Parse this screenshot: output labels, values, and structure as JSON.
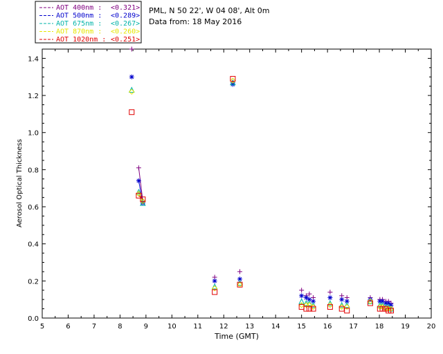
{
  "header": {
    "station": "PML, N 50 22', W 04 08', Alt 0m",
    "date_line": "Data from: 18 May 2016"
  },
  "chart_data": {
    "type": "scatter",
    "title": "",
    "xlabel": "Time (GMT)",
    "ylabel": "Aerosol Optical Thickness",
    "xlim": [
      5,
      20
    ],
    "ylim": [
      0,
      1.45
    ],
    "xticks": [
      "5",
      "6",
      "7",
      "8",
      "9",
      "10",
      "11",
      "12",
      "13",
      "14",
      "15",
      "16",
      "17",
      "18",
      "19",
      "20"
    ],
    "yticks": [
      "0.0",
      "0.2",
      "0.4",
      "0.6",
      "0.8",
      "1.0",
      "1.2",
      "1.4"
    ],
    "legend_position": "top-left",
    "series": [
      {
        "name": "AOT 400nm",
        "legend_label": "AOT  400nm : ",
        "mean_label": "<0.321>",
        "color": "#800080",
        "marker": "plus",
        "connect_first": 3,
        "x": [
          8.45,
          8.72,
          8.88,
          11.65,
          12.35,
          12.62,
          15.0,
          15.18,
          15.3,
          15.45,
          16.1,
          16.55,
          16.75,
          17.65,
          18.02,
          18.12,
          18.25,
          18.35,
          18.45
        ],
        "y": [
          1.46,
          0.81,
          0.63,
          0.22,
          1.27,
          0.25,
          0.15,
          0.12,
          0.13,
          0.11,
          0.14,
          0.12,
          0.11,
          0.11,
          0.1,
          0.1,
          0.09,
          0.09,
          0.08
        ]
      },
      {
        "name": "AOT 500nm",
        "legend_label": "AOT  500nm : ",
        "mean_label": "<0.289>",
        "color": "#0000cc",
        "marker": "asterisk",
        "connect_first": 3,
        "x": [
          8.45,
          8.72,
          8.88,
          11.65,
          12.35,
          12.62,
          15.0,
          15.18,
          15.3,
          15.45,
          16.1,
          16.55,
          16.75,
          17.65,
          18.02,
          18.12,
          18.25,
          18.35,
          18.45
        ],
        "y": [
          1.3,
          0.74,
          0.62,
          0.2,
          1.26,
          0.21,
          0.12,
          0.11,
          0.1,
          0.09,
          0.11,
          0.1,
          0.09,
          0.1,
          0.09,
          0.09,
          0.08,
          0.08,
          0.07
        ]
      },
      {
        "name": "AOT 675nm",
        "legend_label": "AOT  675nm : ",
        "mean_label": "<0.267>",
        "color": "#00b3a8",
        "marker": "triangle",
        "connect_first": 3,
        "x": [
          8.45,
          8.72,
          8.88,
          11.65,
          12.35,
          12.62,
          15.0,
          15.18,
          15.3,
          15.45,
          16.1,
          16.55,
          16.75,
          17.65,
          18.02,
          18.12,
          18.25,
          18.35,
          18.45
        ],
        "y": [
          1.23,
          0.68,
          0.62,
          0.17,
          1.27,
          0.19,
          0.09,
          0.08,
          0.08,
          0.07,
          0.08,
          0.07,
          0.07,
          0.09,
          0.07,
          0.07,
          0.06,
          0.06,
          0.05
        ]
      },
      {
        "name": "AOT 870nm",
        "legend_label": "AOT  870nm : ",
        "mean_label": "<0.260>",
        "color": "#e6e600",
        "marker": "diamond",
        "connect_first": 3,
        "x": [
          8.45,
          8.72,
          8.88,
          11.65,
          12.35,
          12.62,
          15.0,
          15.18,
          15.3,
          15.45,
          16.1,
          16.55,
          16.75,
          17.65,
          18.02,
          18.12,
          18.25,
          18.35,
          18.45
        ],
        "y": [
          1.22,
          0.67,
          0.63,
          0.16,
          1.28,
          0.18,
          0.07,
          0.07,
          0.07,
          0.06,
          0.07,
          0.06,
          0.06,
          0.09,
          0.06,
          0.06,
          0.05,
          0.05,
          0.05
        ]
      },
      {
        "name": "AOT 1020nm",
        "legend_label": "AOT 1020nm : ",
        "mean_label": "<0.251>",
        "color": "#e00000",
        "marker": "square",
        "connect_first": 3,
        "x": [
          8.45,
          8.72,
          8.88,
          11.65,
          12.35,
          12.62,
          15.0,
          15.18,
          15.3,
          15.45,
          16.1,
          16.55,
          16.75,
          17.65,
          18.02,
          18.12,
          18.25,
          18.35,
          18.45
        ],
        "y": [
          1.11,
          0.66,
          0.64,
          0.14,
          1.29,
          0.18,
          0.06,
          0.05,
          0.05,
          0.05,
          0.06,
          0.05,
          0.04,
          0.08,
          0.05,
          0.05,
          0.05,
          0.04,
          0.04
        ]
      }
    ]
  }
}
